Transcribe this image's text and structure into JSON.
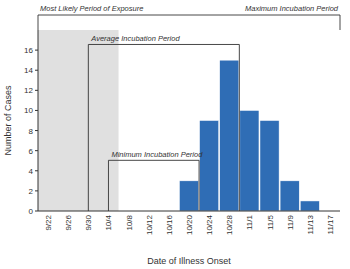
{
  "chart_data": {
    "type": "bar",
    "categories": [
      "9/22",
      "9/26",
      "9/30",
      "10/4",
      "10/8",
      "10/12",
      "10/16",
      "10/20",
      "10/24",
      "10/28",
      "11/1",
      "11/5",
      "11/9",
      "11/13",
      "11/17"
    ],
    "values": [
      0,
      0,
      0,
      0,
      0,
      0,
      0,
      3,
      9,
      15,
      10,
      9,
      3,
      1,
      0
    ],
    "color": "#2F6DB5",
    "xlabel": "Date of Illness Onset",
    "ylabel": "Number of Cases",
    "ylim": [
      0,
      18
    ],
    "yticks": [
      0,
      2,
      4,
      6,
      8,
      10,
      12,
      14,
      16
    ],
    "grid": false,
    "annotations": [
      {
        "type": "shaded",
        "text": "Most Likely Period of Exposure",
        "start": "9/22",
        "end": "10/4",
        "color": "#cccccc"
      },
      {
        "type": "bracket",
        "text": "Maximum Incubation Period",
        "start": "9/22",
        "end": "11/17"
      },
      {
        "type": "bracket",
        "text": "Average Incubation Period",
        "start": "9/30",
        "end": "10/28"
      },
      {
        "type": "bracket",
        "text": "Minimum Incubation Period",
        "start": "10/4",
        "end": "10/20"
      }
    ]
  }
}
